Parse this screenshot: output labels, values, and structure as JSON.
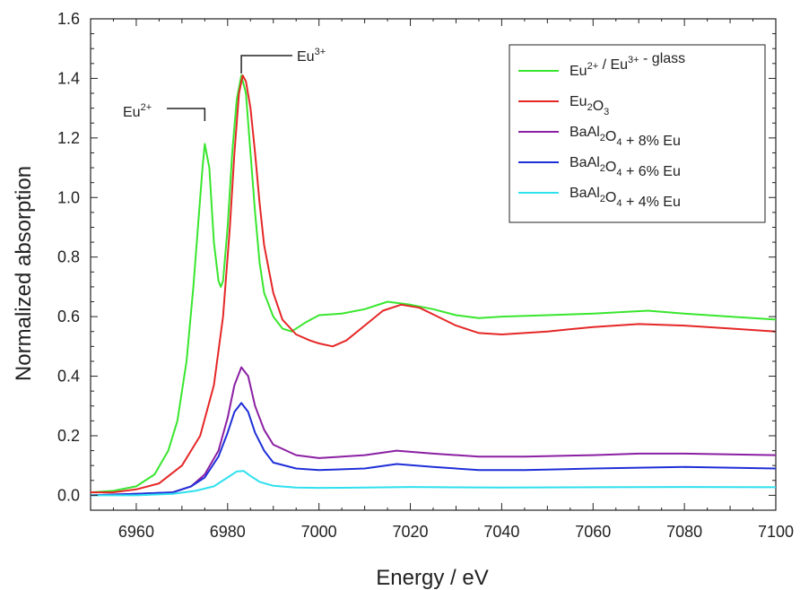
{
  "chart_data": {
    "type": "line",
    "xlabel": "Energy / eV",
    "ylabel": "Normalized absorption",
    "xlim": [
      6950,
      7100
    ],
    "ylim": [
      -0.05,
      1.6
    ],
    "xticks": [
      "6960",
      "6980",
      "7000",
      "7020",
      "7040",
      "7060",
      "7080",
      "7100"
    ],
    "yticks": [
      "0.0",
      "0.2",
      "0.4",
      "0.6",
      "0.8",
      "1.0",
      "1.2",
      "1.4",
      "1.6"
    ],
    "grid": false,
    "legend_position": "top-right",
    "annotations": [
      {
        "base": "Eu",
        "sup": "2+",
        "x": 6975
      },
      {
        "base": "Eu",
        "sup": "3+",
        "x": 6983
      }
    ],
    "series": [
      {
        "name": "Eu2+ / Eu3+ - glass",
        "legend": {
          "base": "Eu",
          "sup": "2+",
          "mid": " / Eu",
          "sup2": "3+",
          "tail": " - glass"
        },
        "color": "#39e62e",
        "points": [
          [
            6950,
            0.01
          ],
          [
            6955,
            0.015
          ],
          [
            6960,
            0.03
          ],
          [
            6964,
            0.07
          ],
          [
            6967,
            0.15
          ],
          [
            6969,
            0.25
          ],
          [
            6971,
            0.45
          ],
          [
            6972.5,
            0.7
          ],
          [
            6973.5,
            0.9
          ],
          [
            6974.5,
            1.1
          ],
          [
            6975,
            1.18
          ],
          [
            6976,
            1.1
          ],
          [
            6977,
            0.85
          ],
          [
            6978,
            0.72
          ],
          [
            6978.5,
            0.7
          ],
          [
            6979,
            0.72
          ],
          [
            6980,
            0.9
          ],
          [
            6981,
            1.15
          ],
          [
            6982,
            1.33
          ],
          [
            6983,
            1.41
          ],
          [
            6984,
            1.35
          ],
          [
            6985,
            1.15
          ],
          [
            6986,
            0.95
          ],
          [
            6987,
            0.78
          ],
          [
            6988,
            0.68
          ],
          [
            6990,
            0.6
          ],
          [
            6992,
            0.56
          ],
          [
            6994,
            0.55
          ],
          [
            6997,
            0.58
          ],
          [
            7000,
            0.605
          ],
          [
            7005,
            0.61
          ],
          [
            7010,
            0.625
          ],
          [
            7015,
            0.65
          ],
          [
            7020,
            0.64
          ],
          [
            7025,
            0.625
          ],
          [
            7030,
            0.605
          ],
          [
            7035,
            0.595
          ],
          [
            7040,
            0.6
          ],
          [
            7050,
            0.605
          ],
          [
            7060,
            0.61
          ],
          [
            7072,
            0.62
          ],
          [
            7080,
            0.61
          ],
          [
            7090,
            0.6
          ],
          [
            7100,
            0.59
          ]
        ]
      },
      {
        "name": "Eu2O3",
        "legend": {
          "base": "Eu",
          "sub": "2",
          "tail": "O",
          "sub2": "3"
        },
        "color": "#e52727",
        "points": [
          [
            6950,
            0.01
          ],
          [
            6955,
            0.01
          ],
          [
            6960,
            0.02
          ],
          [
            6965,
            0.04
          ],
          [
            6970,
            0.1
          ],
          [
            6974,
            0.2
          ],
          [
            6977,
            0.37
          ],
          [
            6979,
            0.6
          ],
          [
            6980.5,
            0.9
          ],
          [
            6981.5,
            1.15
          ],
          [
            6982.5,
            1.35
          ],
          [
            6983.3,
            1.41
          ],
          [
            6984,
            1.39
          ],
          [
            6985,
            1.3
          ],
          [
            6986,
            1.15
          ],
          [
            6987,
            0.98
          ],
          [
            6988,
            0.84
          ],
          [
            6990,
            0.68
          ],
          [
            6992,
            0.59
          ],
          [
            6995,
            0.54
          ],
          [
            6998,
            0.52
          ],
          [
            7000,
            0.51
          ],
          [
            7003,
            0.5
          ],
          [
            7006,
            0.52
          ],
          [
            7010,
            0.57
          ],
          [
            7014,
            0.62
          ],
          [
            7018,
            0.64
          ],
          [
            7022,
            0.63
          ],
          [
            7026,
            0.6
          ],
          [
            7030,
            0.57
          ],
          [
            7035,
            0.545
          ],
          [
            7040,
            0.54
          ],
          [
            7050,
            0.55
          ],
          [
            7060,
            0.565
          ],
          [
            7070,
            0.575
          ],
          [
            7080,
            0.57
          ],
          [
            7090,
            0.56
          ],
          [
            7100,
            0.55
          ]
        ]
      },
      {
        "name": "BaAl2O4 + 8% Eu",
        "legend": {
          "base": "BaAl",
          "sub": "2",
          "tail": "O",
          "sub2": "4",
          "tail2": " + 8% Eu"
        },
        "color": "#8b1fa3",
        "points": [
          [
            6950,
            0.0
          ],
          [
            6960,
            0.005
          ],
          [
            6968,
            0.01
          ],
          [
            6972,
            0.03
          ],
          [
            6975,
            0.07
          ],
          [
            6978,
            0.15
          ],
          [
            6980,
            0.26
          ],
          [
            6981.5,
            0.37
          ],
          [
            6983,
            0.43
          ],
          [
            6984.5,
            0.4
          ],
          [
            6986,
            0.3
          ],
          [
            6988,
            0.22
          ],
          [
            6990,
            0.17
          ],
          [
            6995,
            0.135
          ],
          [
            7000,
            0.125
          ],
          [
            7010,
            0.135
          ],
          [
            7017,
            0.15
          ],
          [
            7025,
            0.14
          ],
          [
            7035,
            0.13
          ],
          [
            7045,
            0.13
          ],
          [
            7060,
            0.135
          ],
          [
            7070,
            0.14
          ],
          [
            7080,
            0.14
          ],
          [
            7100,
            0.135
          ]
        ]
      },
      {
        "name": "BaAl2O4 + 6% Eu",
        "legend": {
          "base": "BaAl",
          "sub": "2",
          "tail": "O",
          "sub2": "4",
          "tail2": " + 6% Eu"
        },
        "color": "#1f2fd8",
        "points": [
          [
            6950,
            0.0
          ],
          [
            6960,
            0.005
          ],
          [
            6968,
            0.01
          ],
          [
            6972,
            0.03
          ],
          [
            6975,
            0.06
          ],
          [
            6978,
            0.13
          ],
          [
            6980,
            0.21
          ],
          [
            6981.5,
            0.28
          ],
          [
            6983,
            0.31
          ],
          [
            6984.5,
            0.28
          ],
          [
            6986,
            0.21
          ],
          [
            6988,
            0.15
          ],
          [
            6990,
            0.11
          ],
          [
            6995,
            0.09
          ],
          [
            7000,
            0.085
          ],
          [
            7010,
            0.09
          ],
          [
            7017,
            0.105
          ],
          [
            7025,
            0.095
          ],
          [
            7035,
            0.085
          ],
          [
            7045,
            0.085
          ],
          [
            7060,
            0.09
          ],
          [
            7080,
            0.095
          ],
          [
            7100,
            0.09
          ]
        ]
      },
      {
        "name": "BaAl2O4 + 4% Eu",
        "legend": {
          "base": "BaAl",
          "sub": "2",
          "tail": "O",
          "sub2": "4",
          "tail2": " + 4% Eu"
        },
        "color": "#2fe0ee",
        "points": [
          [
            6950,
            0.0
          ],
          [
            6960,
            0.0
          ],
          [
            6968,
            0.005
          ],
          [
            6973,
            0.015
          ],
          [
            6977,
            0.03
          ],
          [
            6980,
            0.06
          ],
          [
            6982,
            0.08
          ],
          [
            6983.5,
            0.082
          ],
          [
            6985,
            0.065
          ],
          [
            6987,
            0.045
          ],
          [
            6990,
            0.032
          ],
          [
            6995,
            0.026
          ],
          [
            7000,
            0.025
          ],
          [
            7010,
            0.026
          ],
          [
            7020,
            0.028
          ],
          [
            7040,
            0.026
          ],
          [
            7060,
            0.027
          ],
          [
            7080,
            0.028
          ],
          [
            7100,
            0.027
          ]
        ]
      }
    ]
  }
}
